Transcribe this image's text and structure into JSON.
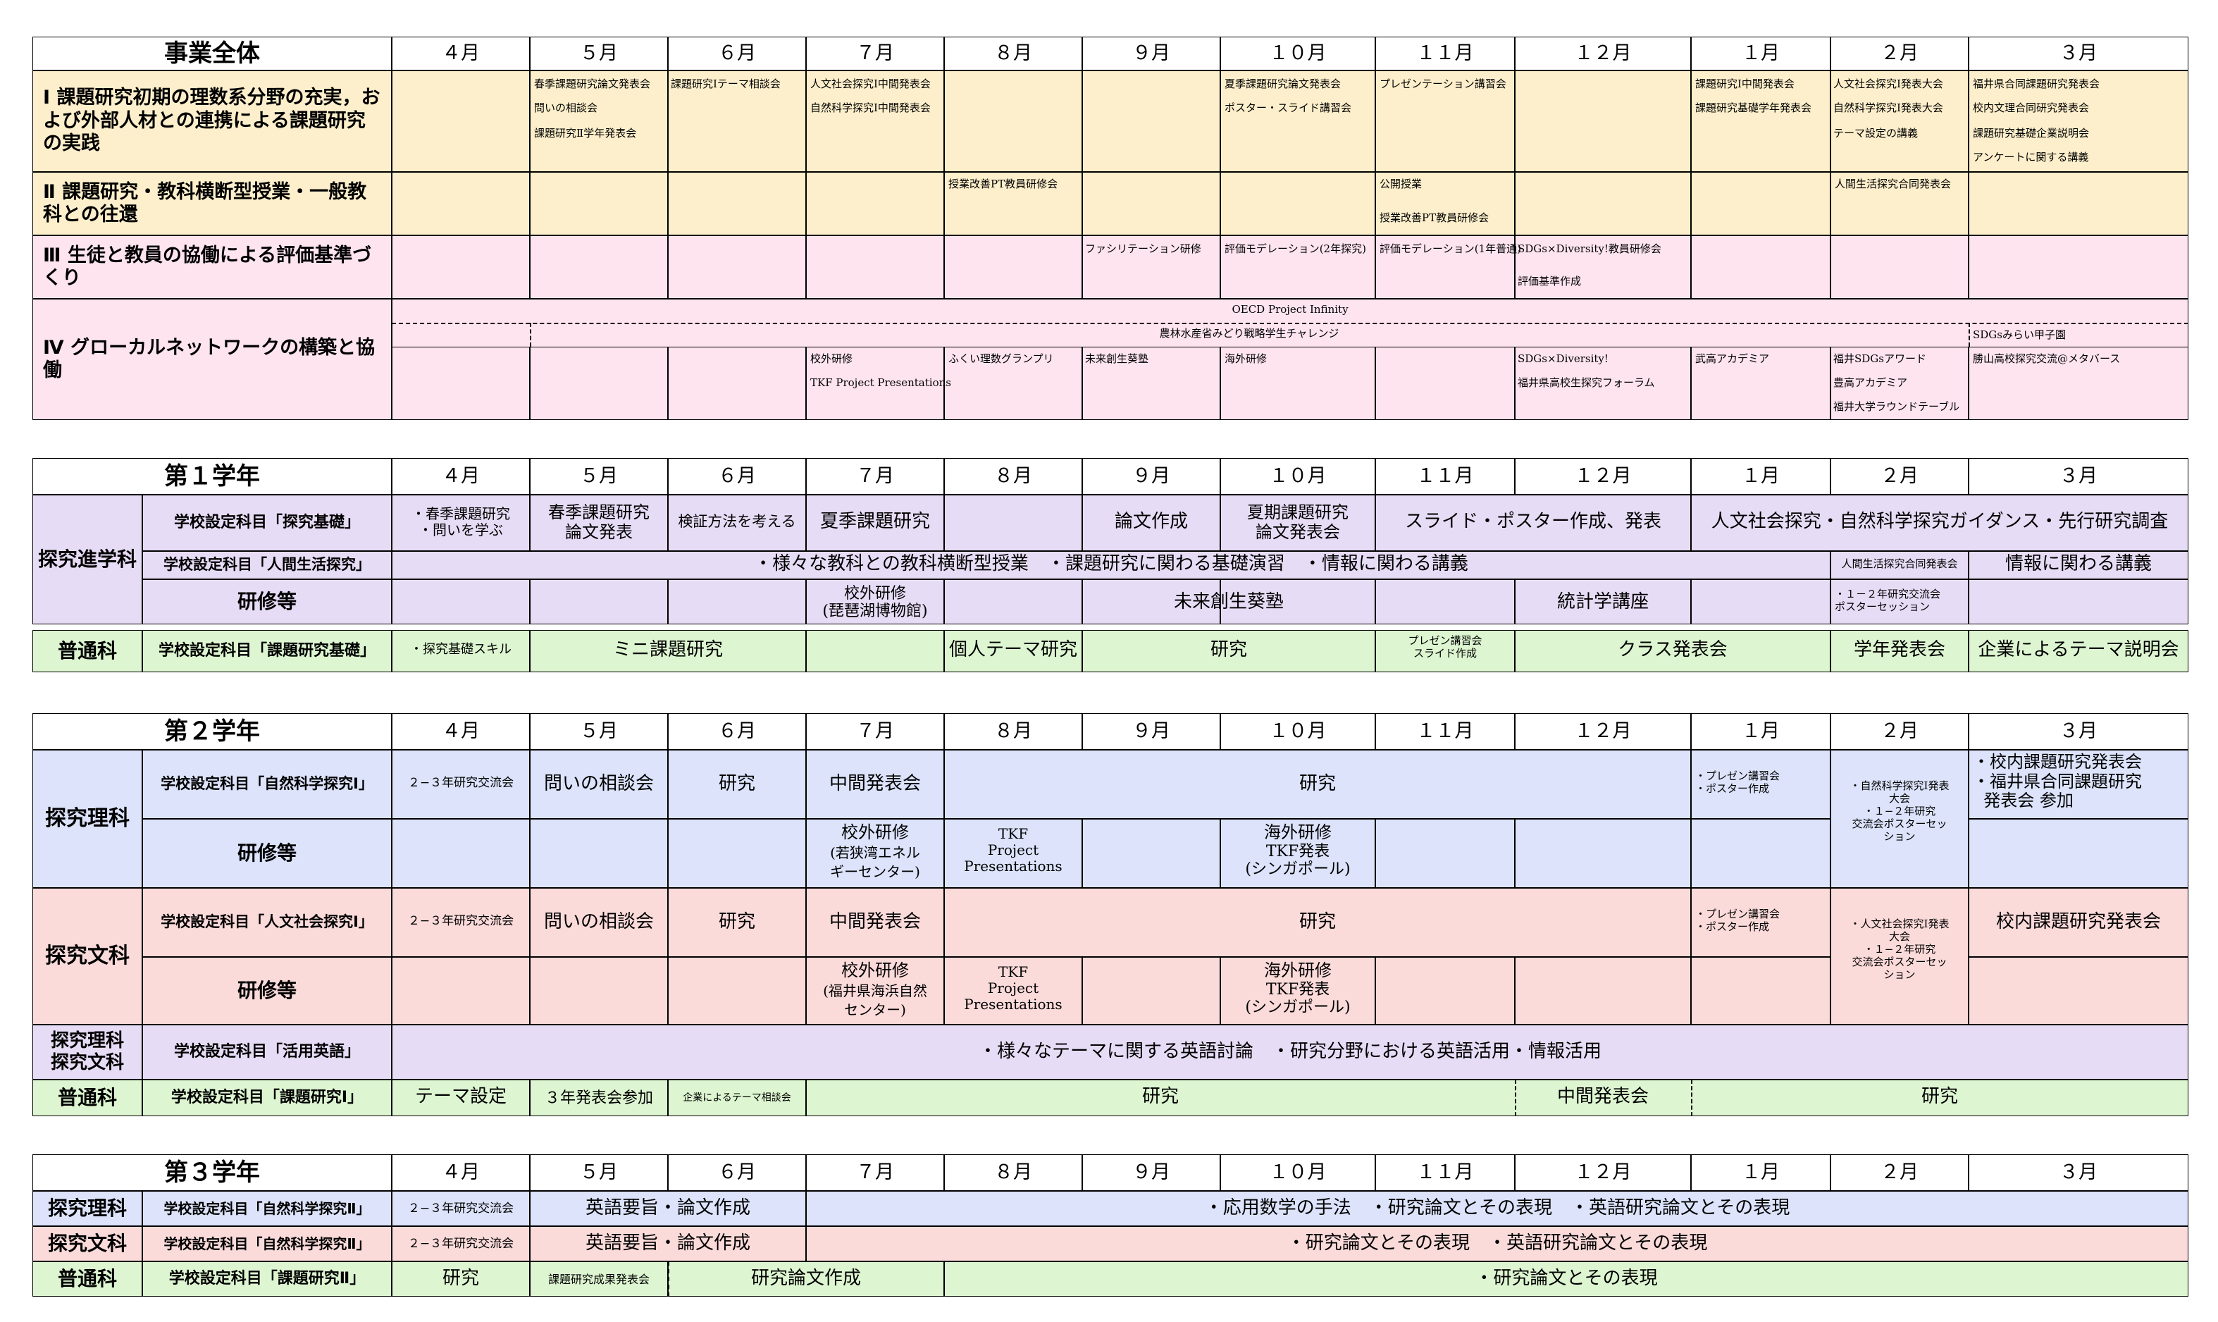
{
  "sections": {
    "s0": "事業全体",
    "s1": "第１学年",
    "s2": "第２学年",
    "s3": "第３学年"
  },
  "months": [
    "４月",
    "５月",
    "６月",
    "７月",
    "８月",
    "９月",
    "１０月",
    "１１月",
    "１２月",
    "１月",
    "２月",
    "３月"
  ],
  "overall": {
    "cat1": "Ⅰ 課題研究初期の理数系分野の充実，および外部人材との連携による課題研究の実践",
    "cat2": "Ⅱ 課題研究・教科横断型授業・一般教科との往還",
    "cat3": "Ⅲ 生徒と教員の協働による評価基準づくり",
    "cat4": "Ⅳ グローカルネットワークの構築と協働",
    "r1": {
      "may": [
        "春季課題研究論文発表会",
        "問いの相談会",
        "課題研究Ⅱ学年発表会"
      ],
      "jun": [
        "課題研究Ⅰテーマ相談会"
      ],
      "jul": [
        "人文社会探究Ⅰ中間発表会",
        "自然科学探究Ⅰ中間発表会"
      ],
      "oct": [
        "夏季課題研究論文発表会",
        "ポスター・スライド講習会"
      ],
      "nov": [
        "プレゼンテーション講習会"
      ],
      "jan": [
        "課題研究Ⅰ中間発表会",
        "課題研究基礎学年発表会"
      ],
      "feb": [
        "人文社会探究Ⅰ発表大会",
        "自然科学探究Ⅰ発表大会",
        "テーマ設定の講義"
      ],
      "mar": [
        "福井県合同課題研究発表会",
        "校内文理合同研究発表会",
        "課題研究基礎企業説明会",
        "アンケートに関する講義"
      ]
    },
    "r2": {
      "aug": "授業改善PT教員研修会",
      "nov": [
        "公開授業",
        "授業改善PT教員研修会"
      ],
      "feb": "人間生活探究合同発表会"
    },
    "r3": {
      "sep": "ファシリテーション研修",
      "oct": "評価モデレーション(2年探究)",
      "nov": "評価モデレーション(1年普通)",
      "dec": [
        "SDGs×Diversity!教員研修会",
        "評価基準作成"
      ]
    },
    "r4": {
      "oecd": "OECD Project Infinity",
      "maff": "農林水産省みどり戦略学生チャレンジ",
      "mar_top": "SDGsみらい甲子園",
      "jul": [
        "校外研修",
        "TKF Project Presentations"
      ],
      "aug": "ふくい理数グランプリ",
      "sep": "未来創生葵塾",
      "oct": "海外研修",
      "dec": [
        "SDGs×Diversity!",
        "福井県高校生探究フォーラム"
      ],
      "jan": "武高アカデミア",
      "feb": [
        "福井SDGsアワード",
        "豊高アカデミア",
        "福井大学ラウンドテーブル"
      ],
      "mar": "勝山高校探究交流@メタバース"
    }
  },
  "y1": {
    "dept1": "探究進学科",
    "dept2": "普通科",
    "subj1": "学校設定科目「探究基礎」",
    "subj2": "学校設定科目「人間生活探究」",
    "subj3": "研修等",
    "subj4": "学校設定科目「課題研究基礎」",
    "r1": {
      "apr": [
        "・春季課題研究",
        "・問いを学ぶ"
      ],
      "may": [
        "春季課題研究",
        "論文発表"
      ],
      "jun": "検証方法を考える",
      "jul": "夏季課題研究",
      "sep": "論文作成",
      "oct": [
        "夏期課題研究",
        "論文発表会"
      ],
      "novdec": "スライド・ポスター作成、発表",
      "janmar": "人文社会探究・自然科学探究ガイダンス・先行研究調査"
    },
    "r2": {
      "main": "・様々な教科との教科横断型授業　・課題研究に関わる基礎演習　・情報に関わる講義",
      "feb": "人間生活探究合同発表会",
      "mar": "情報に関わる講義"
    },
    "r3": {
      "jul": [
        "校外研修",
        "(琵琶湖博物館)"
      ],
      "sep": "未来創生葵塾",
      "dec": "統計学講座",
      "feb": [
        "・１－２年研究交流会",
        "ポスターセッション"
      ]
    },
    "r4": {
      "apr": "・探究基礎スキル",
      "mayjun": "ミニ課題研究",
      "aug": "個人テーマ研究",
      "sepoct": "研究",
      "nov": [
        "プレゼン講習会",
        "スライド作成"
      ],
      "decjan": "クラス発表会",
      "feb": "学年発表会",
      "mar": "企業によるテーマ説明会"
    }
  },
  "y2": {
    "dept1": "探究理科",
    "dept2": "探究文科",
    "dept3": [
      "探究理科",
      "探究文科"
    ],
    "dept4": "普通科",
    "subj1": "学校設定科目「自然科学探究Ⅰ」",
    "subj2": "研修等",
    "subj3": "学校設定科目「人文社会探究Ⅰ」",
    "subj4": "研修等",
    "subj5": "学校設定科目「活用英語」",
    "subj6": "学校設定科目「課題研究Ⅰ」",
    "r1": {
      "apr": "２−３年研究交流会",
      "may": "問いの相談会",
      "jun": "研究",
      "jul": "中間発表会",
      "main": "研究",
      "jan": [
        "・プレゼン講習会",
        "・ポスター作成"
      ],
      "feb": [
        "・自然科学探究Ⅰ発表",
        "大会",
        "・１−２年研究",
        "交流会ポスターセッ",
        "ション"
      ],
      "mar": [
        "・校内課題研究発表会",
        "・福井県合同課題研究",
        "発表会 参加"
      ]
    },
    "r2": {
      "jul": [
        "校外研修",
        "(若狭湾エネル",
        "ギーセンター)"
      ],
      "aug": [
        "TKF",
        "Project",
        "Presentations"
      ],
      "oct": [
        "海外研修",
        "TKF発表",
        "(シンガポール)"
      ]
    },
    "r3": {
      "apr": "２−３年研究交流会",
      "may": "問いの相談会",
      "jun": "研究",
      "jul": "中間発表会",
      "main": "研究",
      "jan": [
        "・プレゼン講習会",
        "・ポスター作成"
      ],
      "feb": [
        "・人文社会探究Ⅰ発表",
        "大会",
        "・１−２年研究",
        "交流会ポスターセッ",
        "ション"
      ],
      "mar": "校内課題研究発表会"
    },
    "r4": {
      "jul": [
        "校外研修",
        "(福井県海浜自然",
        "センター)"
      ],
      "aug": [
        "TKF",
        "Project",
        "Presentations"
      ],
      "oct": [
        "海外研修",
        "TKF発表",
        "(シンガポール)"
      ]
    },
    "r5": {
      "main": "・様々なテーマに関する英語討論　・研究分野における英語活用・情報活用"
    },
    "r6": {
      "apr": "テーマ設定",
      "may": "３年発表会参加",
      "jun": "企業によるテーマ相談会",
      "main": "研究",
      "dec": "中間発表会",
      "rest": "研究"
    }
  },
  "y3": {
    "dept1": "探究理科",
    "dept2": "探究文科",
    "dept3": "普通科",
    "subj1": "学校設定科目「自然科学探究Ⅱ」",
    "subj2": "学校設定科目「自然科学探究Ⅱ」",
    "subj3": "学校設定科目「課題研究Ⅱ」",
    "r1": {
      "apr": "２−３年研究交流会",
      "mayjun": "英語要旨・論文作成",
      "main": "・応用数学の手法　・研究論文とその表現　・英語研究論文とその表現"
    },
    "r2": {
      "apr": "２−３年研究交流会",
      "mayjun": "英語要旨・論文作成",
      "main": "・研究論文とその表現　・英語研究論文とその表現"
    },
    "r3": {
      "apr": "研究",
      "may": "課題研究成果発表会",
      "junjul": "研究論文作成",
      "main": "・研究論文とその表現"
    }
  }
}
